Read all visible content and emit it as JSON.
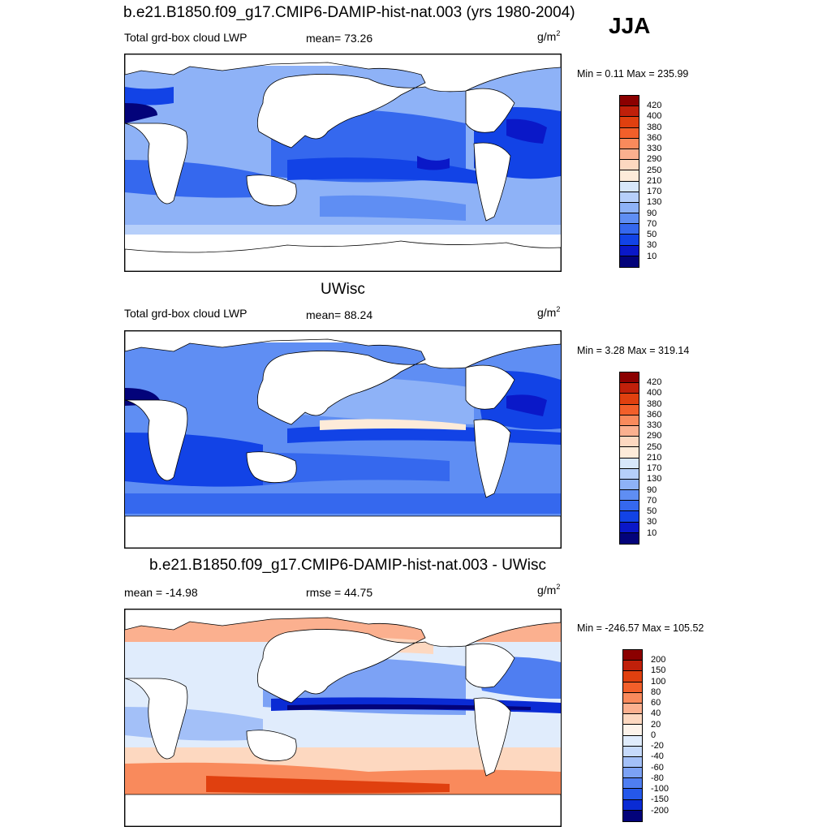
{
  "season": "JJA",
  "panels": [
    {
      "title": "b.e21.B1850.f09_g17.CMIP6-DAMIP-hist-nat.003 (yrs 1980-2004)",
      "left_label": "Total grd-box cloud LWP",
      "center_label": "mean=  73.26",
      "units": "g/m",
      "units_exp": "2",
      "minmax": "Min =   0.11 Max = 235.99",
      "colorbar_levels": [
        "420",
        "400",
        "380",
        "360",
        "330",
        "290",
        "250",
        "210",
        "170",
        "130",
        "90",
        "70",
        "50",
        "30",
        "10"
      ],
      "colorbar_colors": [
        "#8b0000",
        "#c0200a",
        "#e0400f",
        "#f25f2a",
        "#f98a5c",
        "#fbb08f",
        "#fdd8c0",
        "#fdebd9",
        "#d7e7fb",
        "#b6cffa",
        "#8eb2f7",
        "#5f8ef3",
        "#3568ee",
        "#1243e6",
        "#0a18c8",
        "#03037a"
      ]
    },
    {
      "title": "UWisc",
      "left_label": "Total grd-box cloud LWP",
      "center_label": "mean=  88.24",
      "units": "g/m",
      "units_exp": "2",
      "minmax": "Min =   3.28 Max = 319.14",
      "colorbar_levels": [
        "420",
        "400",
        "380",
        "360",
        "330",
        "290",
        "250",
        "210",
        "170",
        "130",
        "90",
        "70",
        "50",
        "30",
        "10"
      ],
      "colorbar_colors": [
        "#8b0000",
        "#c0200a",
        "#e0400f",
        "#f25f2a",
        "#f98a5c",
        "#fbb08f",
        "#fdd8c0",
        "#fdebd9",
        "#d7e7fb",
        "#b6cffa",
        "#8eb2f7",
        "#5f8ef3",
        "#3568ee",
        "#1243e6",
        "#0a18c8",
        "#03037a"
      ]
    },
    {
      "title": "b.e21.B1850.f09_g17.CMIP6-DAMIP-hist-nat.003 - UWisc",
      "left_label": "mean = -14.98",
      "center_label": "rmse =  44.75",
      "units": "g/m",
      "units_exp": "2",
      "minmax": "Min = -246.57 Max = 105.52",
      "colorbar_levels": [
        "200",
        "150",
        "100",
        "80",
        "60",
        "40",
        "20",
        "0",
        "-20",
        "-40",
        "-60",
        "-80",
        "-100",
        "-150",
        "-200"
      ],
      "colorbar_colors": [
        "#8b0000",
        "#c0200a",
        "#e0400f",
        "#f25f2a",
        "#f98a5c",
        "#fbb08f",
        "#fdd8c0",
        "#fdf3ea",
        "#e0ecfc",
        "#c6dafb",
        "#a3c0f8",
        "#7ca2f5",
        "#4f7ef1",
        "#2558ea",
        "#0a2bd4",
        "#03037a"
      ]
    }
  ]
}
